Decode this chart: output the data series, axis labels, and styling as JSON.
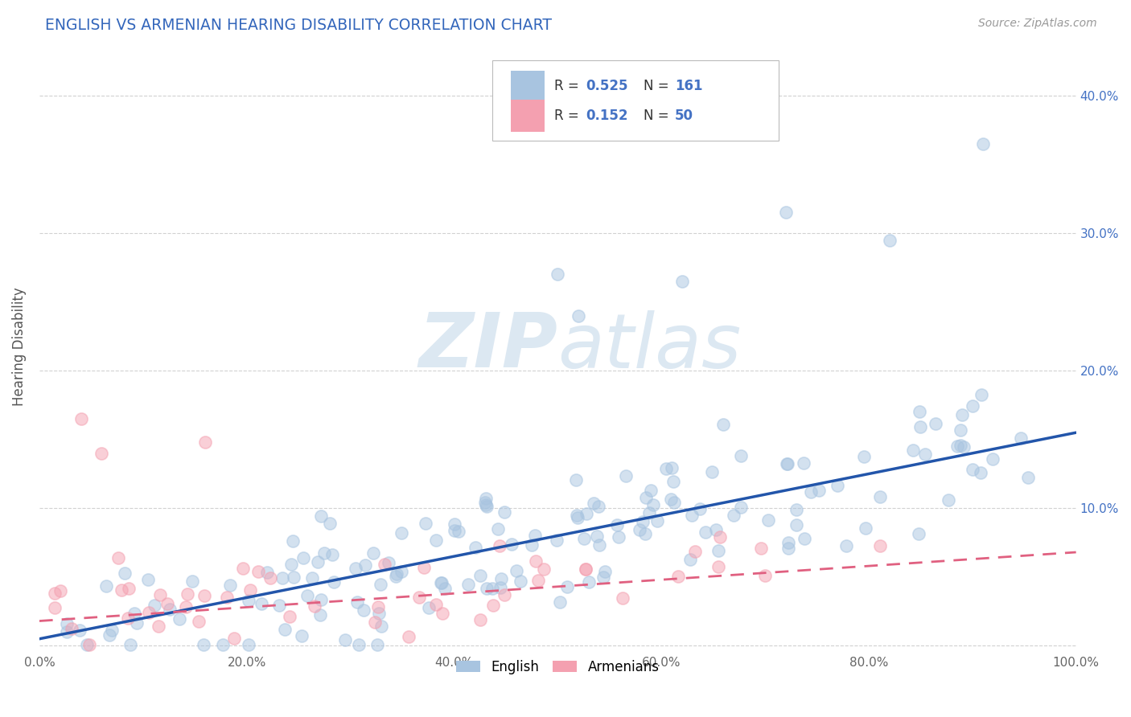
{
  "title": "ENGLISH VS ARMENIAN HEARING DISABILITY CORRELATION CHART",
  "source": "Source: ZipAtlas.com",
  "ylabel": "Hearing Disability",
  "english_R": 0.525,
  "english_N": 161,
  "armenian_R": 0.152,
  "armenian_N": 50,
  "english_color": "#a8c4e0",
  "armenian_color": "#f4a0b0",
  "english_line_color": "#2255aa",
  "armenian_line_color": "#e06080",
  "background_color": "#ffffff",
  "grid_color": "#cccccc",
  "title_color": "#3366bb",
  "right_tick_color": "#4472c4",
  "watermark_color": "#dce8f2",
  "xlim": [
    0.0,
    1.0
  ],
  "ylim": [
    -0.005,
    0.44
  ],
  "xticks": [
    0.0,
    0.2,
    0.4,
    0.6,
    0.8,
    1.0
  ],
  "yticks": [
    0.0,
    0.1,
    0.2,
    0.3,
    0.4
  ],
  "xticklabels": [
    "0.0%",
    "20.0%",
    "40.0%",
    "60.0%",
    "80.0%",
    "100.0%"
  ],
  "right_yticklabels": [
    "",
    "10.0%",
    "20.0%",
    "30.0%",
    "40.0%"
  ],
  "eng_line_start_x": 0.0,
  "eng_line_start_y": 0.005,
  "eng_line_end_x": 1.0,
  "eng_line_end_y": 0.155,
  "arm_line_start_x": 0.0,
  "arm_line_start_y": 0.018,
  "arm_line_end_x": 1.0,
  "arm_line_end_y": 0.068
}
